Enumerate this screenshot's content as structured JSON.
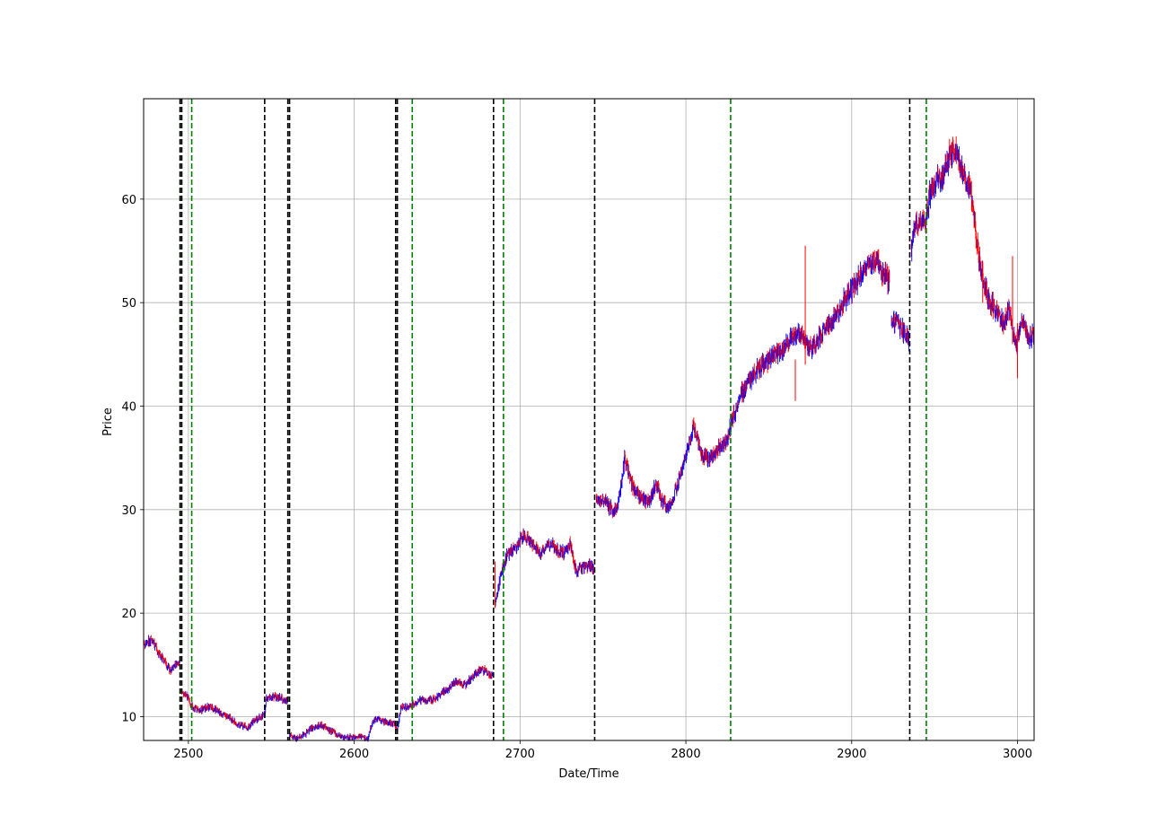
{
  "chart_data": {
    "type": "candlestick",
    "title": "",
    "xlabel": "Date/Time",
    "ylabel": "Price",
    "xlim": [
      2473,
      3010
    ],
    "ylim": [
      7.7,
      69.7
    ],
    "x_ticks": [
      2500,
      2600,
      2700,
      2800,
      2900,
      3000
    ],
    "y_ticks": [
      10,
      20,
      30,
      40,
      50,
      60
    ],
    "grid": true,
    "colors": {
      "up": "#0000ff",
      "down": "#ff0000",
      "black_lines": "#000000",
      "green_lines": "#008000",
      "grid": "#b0b0b0"
    },
    "vertical_lines_black": [
      2495,
      2496,
      2546,
      2560,
      2561,
      2625,
      2626,
      2684,
      2745,
      2935
    ],
    "vertical_lines_green": [
      2495,
      2502,
      2560,
      2625,
      2635,
      2690,
      2827,
      2945
    ],
    "price_path": [
      [
        2473,
        17.0
      ],
      [
        2478,
        17.4
      ],
      [
        2482,
        16.2
      ],
      [
        2486,
        15.2
      ],
      [
        2489,
        14.4
      ],
      [
        2493,
        15.1
      ],
      [
        2495,
        15.3
      ],
      [
        2496,
        12.5
      ],
      [
        2499,
        12.0
      ],
      [
        2503,
        10.8
      ],
      [
        2508,
        10.7
      ],
      [
        2513,
        11.0
      ],
      [
        2518,
        10.5
      ],
      [
        2524,
        10.0
      ],
      [
        2530,
        9.2
      ],
      [
        2536,
        9.0
      ],
      [
        2540,
        9.6
      ],
      [
        2546,
        10.2
      ],
      [
        2547,
        11.7
      ],
      [
        2551,
        12.0
      ],
      [
        2555,
        11.8
      ],
      [
        2560,
        11.5
      ],
      [
        2561,
        8.2
      ],
      [
        2565,
        7.9
      ],
      [
        2570,
        8.3
      ],
      [
        2575,
        8.9
      ],
      [
        2580,
        9.2
      ],
      [
        2585,
        8.7
      ],
      [
        2590,
        8.2
      ],
      [
        2597,
        8.0
      ],
      [
        2603,
        8.1
      ],
      [
        2608,
        7.9
      ],
      [
        2612,
        9.8
      ],
      [
        2618,
        9.5
      ],
      [
        2624,
        9.3
      ],
      [
        2626,
        8.8
      ],
      [
        2628,
        10.8
      ],
      [
        2633,
        11.0
      ],
      [
        2640,
        11.6
      ],
      [
        2646,
        11.6
      ],
      [
        2652,
        12.1
      ],
      [
        2657,
        12.8
      ],
      [
        2662,
        13.4
      ],
      [
        2667,
        13.1
      ],
      [
        2672,
        14.0
      ],
      [
        2677,
        14.6
      ],
      [
        2680,
        14.3
      ],
      [
        2684,
        14.0
      ],
      [
        2685,
        21.0
      ],
      [
        2688,
        23.5
      ],
      [
        2692,
        25.6
      ],
      [
        2697,
        26.2
      ],
      [
        2702,
        27.6
      ],
      [
        2707,
        26.6
      ],
      [
        2712,
        25.8
      ],
      [
        2718,
        26.8
      ],
      [
        2723,
        26.0
      ],
      [
        2727,
        25.9
      ],
      [
        2730,
        26.8
      ],
      [
        2734,
        24.0
      ],
      [
        2738,
        24.5
      ],
      [
        2742,
        24.7
      ],
      [
        2745,
        24.0
      ],
      [
        2746,
        31.2
      ],
      [
        2751,
        30.9
      ],
      [
        2756,
        29.8
      ],
      [
        2759,
        30.5
      ],
      [
        2763,
        34.8
      ],
      [
        2768,
        32.2
      ],
      [
        2773,
        31.0
      ],
      [
        2778,
        30.8
      ],
      [
        2782,
        32.6
      ],
      [
        2786,
        30.6
      ],
      [
        2791,
        30.3
      ],
      [
        2796,
        33.0
      ],
      [
        2801,
        36.0
      ],
      [
        2805,
        38.2
      ],
      [
        2809,
        35.2
      ],
      [
        2815,
        35.0
      ],
      [
        2820,
        35.9
      ],
      [
        2825,
        36.8
      ],
      [
        2828,
        38.8
      ],
      [
        2833,
        41.0
      ],
      [
        2838,
        42.5
      ],
      [
        2843,
        43.5
      ],
      [
        2848,
        44.2
      ],
      [
        2853,
        44.8
      ],
      [
        2858,
        45.5
      ],
      [
        2863,
        46.5
      ],
      [
        2868,
        47.0
      ],
      [
        2872,
        46.3
      ],
      [
        2876,
        45.5
      ],
      [
        2880,
        46.5
      ],
      [
        2885,
        47.7
      ],
      [
        2890,
        48.5
      ],
      [
        2895,
        50.0
      ],
      [
        2900,
        51.2
      ],
      [
        2905,
        52.5
      ],
      [
        2910,
        53.5
      ],
      [
        2915,
        54.3
      ],
      [
        2918,
        53.0
      ],
      [
        2923,
        52.0
      ],
      [
        2924,
        48.5
      ],
      [
        2928,
        48.0
      ],
      [
        2932,
        47.0
      ],
      [
        2935,
        46.5
      ],
      [
        2936,
        55.5
      ],
      [
        2939,
        57.5
      ],
      [
        2942,
        58.2
      ],
      [
        2945,
        58.0
      ],
      [
        2947,
        60.5
      ],
      [
        2951,
        61.8
      ],
      [
        2955,
        62.2
      ],
      [
        2959,
        64.5
      ],
      [
        2963,
        64.8
      ],
      [
        2968,
        62.0
      ],
      [
        2972,
        60.8
      ],
      [
        2976,
        55.0
      ],
      [
        2980,
        51.5
      ],
      [
        2984,
        50.0
      ],
      [
        2988,
        48.8
      ],
      [
        2992,
        48.0
      ],
      [
        2995,
        49.5
      ],
      [
        2999,
        45.5
      ],
      [
        3003,
        48.5
      ],
      [
        3007,
        46.5
      ],
      [
        3010,
        47.0
      ]
    ],
    "spikes": [
      {
        "x": 2872,
        "high": 55.5,
        "low": 44.0
      },
      {
        "x": 2866,
        "high": 44.5,
        "low": 40.5
      },
      {
        "x": 2997,
        "high": 54.5,
        "low": 46.0
      },
      {
        "x": 3000,
        "high": 48.0,
        "low": 42.7
      },
      {
        "x": 2979,
        "high": 54.0,
        "low": 50.0
      },
      {
        "x": 2685,
        "high": 25.0,
        "low": 20.5
      }
    ]
  }
}
